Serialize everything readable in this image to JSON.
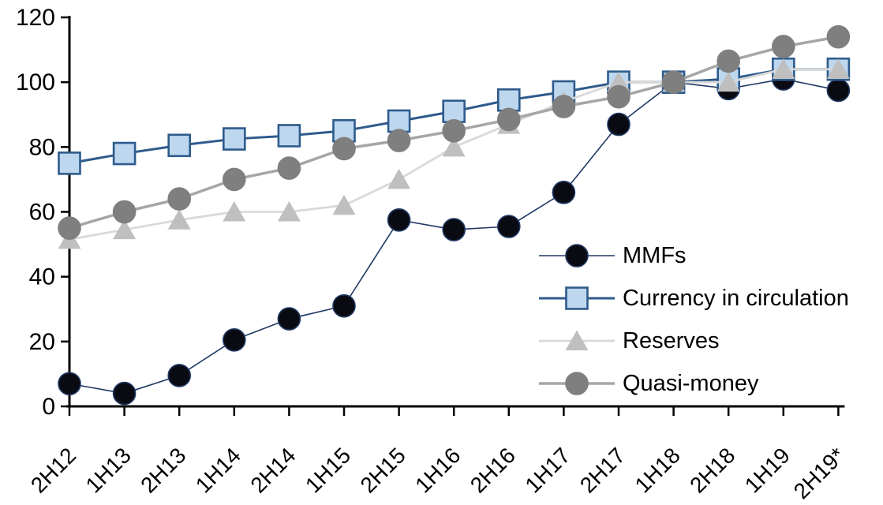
{
  "chart_data": {
    "type": "line",
    "title": "",
    "xlabel": "",
    "ylabel": "",
    "ylim": [
      0,
      120
    ],
    "ytick_step": 20,
    "grid": false,
    "legend_position": "inside-right",
    "axis_color": "#000000",
    "tick_label_color": "#000000",
    "categories": [
      "2H12",
      "1H13",
      "2H13",
      "1H14",
      "2H14",
      "1H15",
      "2H15",
      "1H16",
      "2H16",
      "1H17",
      "2H17",
      "1H18",
      "2H18",
      "1H19",
      "2H19*"
    ],
    "series": [
      {
        "name": "MMFs",
        "marker": "circle",
        "marker_color": "#0a0a12",
        "marker_border": "#1f3864",
        "line_color": "#1f3864",
        "line_width": 1.6,
        "values": [
          7,
          4,
          9.5,
          20.5,
          27,
          31,
          57.5,
          54.5,
          55.5,
          66,
          87,
          100,
          98,
          101,
          97.5
        ]
      },
      {
        "name": "Currency in circulation",
        "marker": "square",
        "marker_color": "#bdd7ee",
        "marker_border": "#2e5b8c",
        "line_color": "#2e5b8c",
        "line_width": 3,
        "values": [
          75,
          78,
          80.5,
          82.5,
          83.5,
          85,
          88,
          91,
          94.5,
          97,
          100,
          100,
          101,
          104,
          104
        ]
      },
      {
        "name": "Reserves",
        "marker": "triangle",
        "marker_color": "#bfbfbf",
        "marker_border": "#bfbfbf",
        "line_color": "#d9d9d9",
        "line_width": 2.8,
        "values": [
          51.5,
          54.5,
          57.5,
          60,
          60,
          62,
          70,
          80,
          87,
          94,
          100,
          100,
          100,
          104,
          104
        ]
      },
      {
        "name": "Quasi-money",
        "marker": "circle",
        "marker_color": "#7f7f7f",
        "marker_border": "#7f7f7f",
        "line_color": "#a6a6a6",
        "line_width": 3.5,
        "values": [
          55,
          60,
          64,
          70,
          73.5,
          79.5,
          82,
          85,
          88.5,
          92.5,
          95.5,
          100,
          106.5,
          111,
          114
        ]
      }
    ]
  }
}
